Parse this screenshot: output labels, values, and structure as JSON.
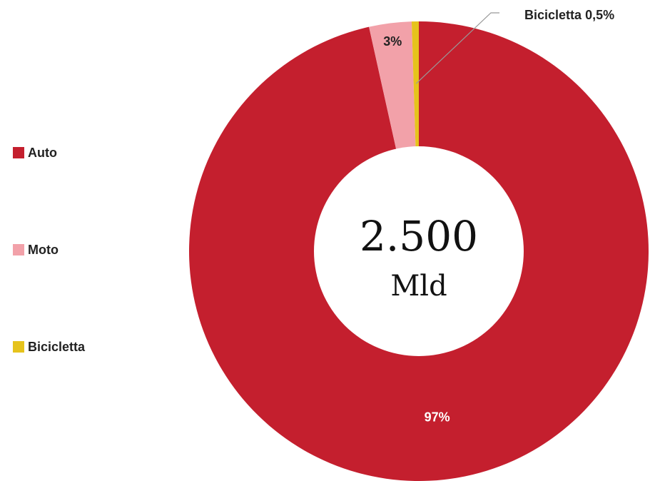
{
  "chart_data": {
    "type": "donut",
    "categories": [
      "Auto",
      "Moto",
      "Bicicletta"
    ],
    "values": [
      97,
      3,
      0.5
    ],
    "value_labels": [
      "97%",
      "3%",
      "0,5%"
    ],
    "colors": [
      "#c41f2e",
      "#f2a1a9",
      "#e6c31c"
    ],
    "center_text": [
      "2.500",
      "Mld"
    ],
    "legend": "left"
  }
}
